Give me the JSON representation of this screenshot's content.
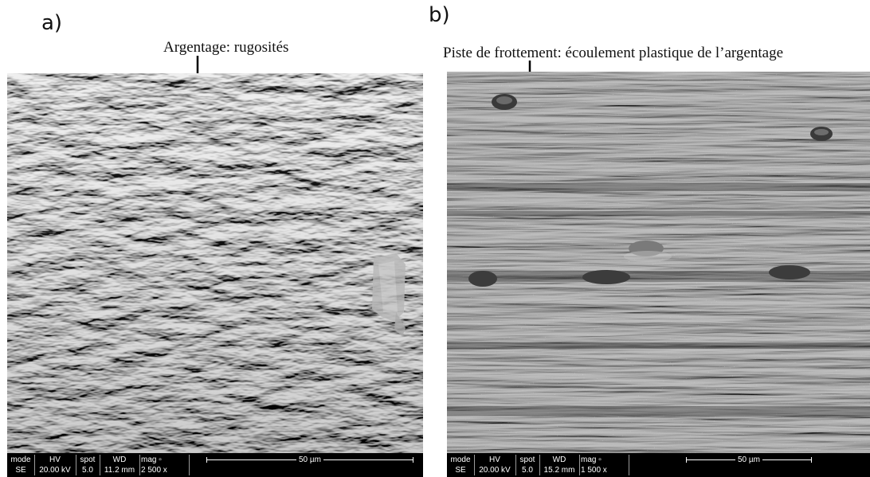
{
  "panels": [
    {
      "letter": "a)",
      "caption": "Argentage: rugosités",
      "databar": {
        "headers": [
          "mode",
          "HV",
          "spot",
          "WD",
          "mag ▫"
        ],
        "values": [
          "SE",
          "20.00 kV",
          "5.0",
          "11.2 mm",
          "2 500 x"
        ],
        "scale_label": "50 µm"
      }
    },
    {
      "letter": "b)",
      "caption": "Piste de frottement: écoulement plastique de l’argentage",
      "databar": {
        "headers": [
          "mode",
          "HV",
          "spot",
          "WD",
          "mag ▫"
        ],
        "values": [
          "SE",
          "20.00 kV",
          "5.0",
          "15.2 mm",
          "1 500 x"
        ],
        "scale_label": "50 µm"
      }
    }
  ],
  "colors": {
    "frame_b_border": "#1f3d74",
    "databar_bg": "#000000",
    "databar_text": "#ffffff"
  }
}
